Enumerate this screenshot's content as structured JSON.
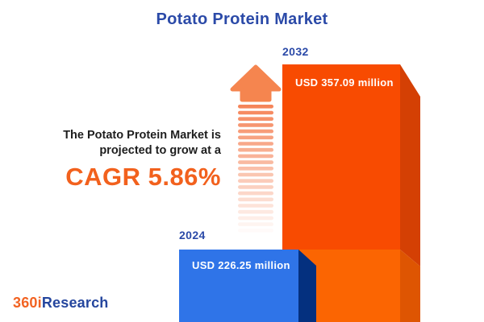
{
  "title": "Potato Protein Market",
  "growth_note": {
    "line1": "The Potato Protein Market is",
    "line2": "projected to grow at a",
    "cagr_label": "CAGR 5.86%"
  },
  "bars": [
    {
      "year": "2024",
      "value_label": "USD 226.25 million"
    },
    {
      "year": "2032",
      "value_label": "USD 357.09 million"
    }
  ],
  "logo": {
    "prefix": "360i",
    "suffix": "Research"
  },
  "colors": {
    "title_blue": "#2B4AA8",
    "cagr_orange": "#F2611D",
    "text_dark": "#1E1E1E",
    "value_text": "#FFFFFF",
    "bar_2024_front": "#2F74E8",
    "bar_2024_side": "#04307F",
    "bar_2032_front_upper": "#F84B01",
    "bar_2032_side_upper": "#D44004",
    "bar_2032_front_lower": "#FB6502",
    "bar_2032_side_lower": "#DE5502",
    "arrow_orange": "#F5855A"
  },
  "chart_data": {
    "type": "bar",
    "title": "Potato Protein Market",
    "categories": [
      "2024",
      "2032"
    ],
    "values": [
      226.25,
      357.09
    ],
    "unit": "USD million",
    "value_labels": [
      "USD 226.25 million",
      "USD 357.09 million"
    ],
    "cagr_percent": 5.86,
    "orientation": "vertical",
    "axes": "hidden",
    "legend": "none",
    "not_to_scale": true
  }
}
